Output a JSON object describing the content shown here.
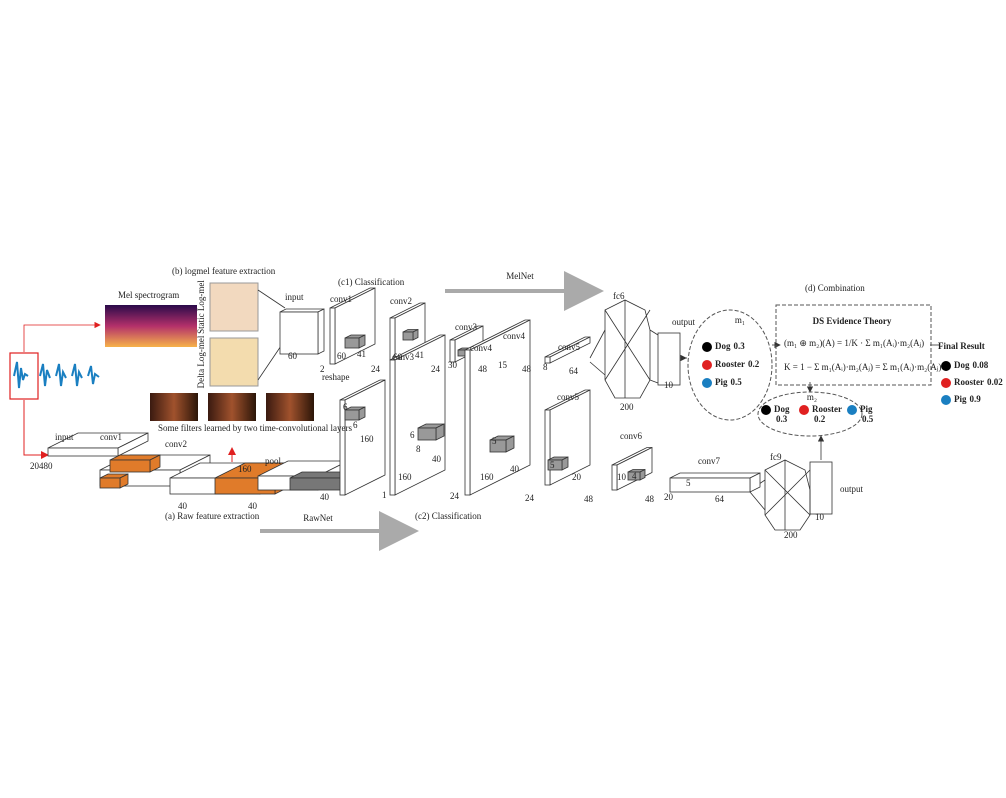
{
  "logmel": {
    "title": "(b) logmel feature extraction",
    "spectrogram_label": "Mel spectrogram",
    "static_label": "Static Log-mel",
    "delta_label": "Delta Log-mel",
    "filters_caption": "Some filters learned by two time-convolutional layers"
  },
  "melnet": {
    "section": "(c1) Classification",
    "name": "MelNet",
    "layers": [
      {
        "name": "input",
        "dims": [
          "60",
          "2"
        ]
      },
      {
        "name": "conv1",
        "dims": [
          "60",
          "41",
          "24"
        ]
      },
      {
        "name": "conv2",
        "dims": [
          "60",
          "41",
          "24"
        ]
      },
      {
        "name": "conv3",
        "dims": [
          "30",
          "48"
        ]
      },
      {
        "name": "conv4",
        "dims": [
          "15",
          "48"
        ]
      },
      {
        "name": "conv5",
        "dims": [
          "8",
          "64"
        ]
      },
      {
        "name": "fc6",
        "dims": [
          "200"
        ]
      },
      {
        "name": "output",
        "dims": [
          "10"
        ]
      }
    ]
  },
  "rawnet": {
    "feature_section": "(a) Raw feature extraction",
    "section": "(c2) Classification",
    "name": "RawNet",
    "layers": [
      {
        "name": "input",
        "dims": [
          "20480"
        ]
      },
      {
        "name": "conv1",
        "dims": [
          "40"
        ]
      },
      {
        "name": "conv2",
        "dims": [
          "160",
          "40"
        ]
      },
      {
        "name": "pool",
        "dims": [
          "40"
        ]
      },
      {
        "name": "reshape",
        "dims": [
          "6",
          "6",
          "160",
          "1"
        ]
      },
      {
        "name": "conv3",
        "dims": [
          "6",
          "8",
          "160",
          "40",
          "24"
        ]
      },
      {
        "name": "conv4",
        "dims": [
          "5",
          "160",
          "40",
          "24"
        ]
      },
      {
        "name": "conv5",
        "dims": [
          "5",
          "20",
          "48"
        ]
      },
      {
        "name": "conv6",
        "dims": [
          "4",
          "10",
          "48"
        ]
      },
      {
        "name": "conv7",
        "dims": [
          "5",
          "20",
          "64"
        ]
      },
      {
        "name": "fc9",
        "dims": [
          "200"
        ]
      },
      {
        "name": "output",
        "dims": [
          "10"
        ]
      }
    ]
  },
  "combination": {
    "title": "(d) Combination",
    "theory": "DS Evidence Theory",
    "formulas": [
      "(m₁ ⊕ m₂)(A) = 1/K · Σ m₁(Aᵢ)·m₂(Aⱼ)",
      "K = 1 − Σ m₁(Aᵢ)·m₂(Aⱼ) = Σ m₁(Aᵢ)·m₂(Aⱼ)"
    ],
    "m1": {
      "label": "m₁",
      "classes": [
        {
          "label": "Dog",
          "value": 0.3
        },
        {
          "label": "Rooster",
          "value": 0.2
        },
        {
          "label": "Pig",
          "value": 0.5
        }
      ]
    },
    "m2": {
      "label": "m₂",
      "classes": [
        {
          "label": "Dog",
          "value": 0.3
        },
        {
          "label": "Rooster",
          "value": 0.2
        },
        {
          "label": "Pig",
          "value": 0.5
        }
      ]
    },
    "final": {
      "title": "Final Result",
      "classes": [
        {
          "label": "Dog",
          "value": 0.08
        },
        {
          "label": "Rooster",
          "value": 0.02
        },
        {
          "label": "Pig",
          "value": 0.9
        }
      ]
    }
  }
}
